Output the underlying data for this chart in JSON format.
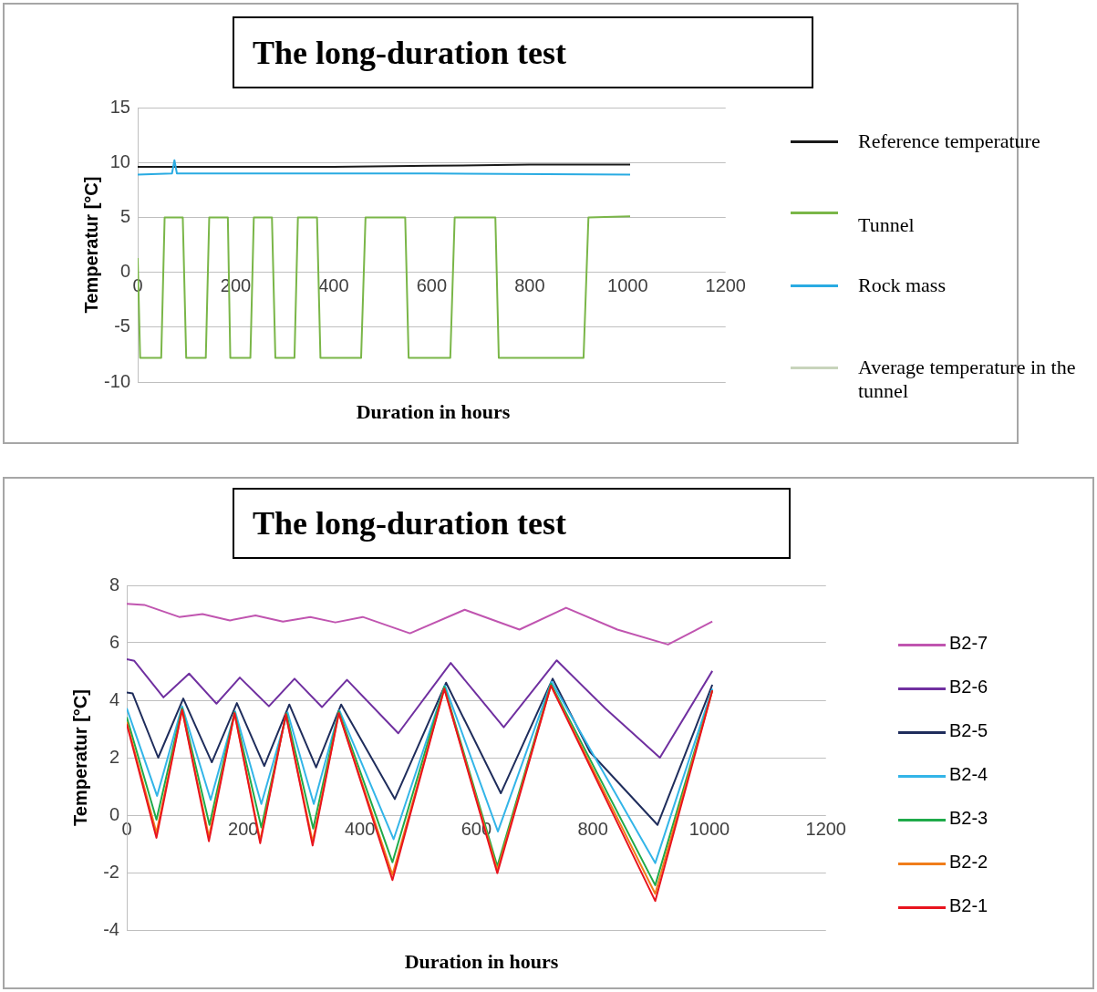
{
  "chart_data": [
    {
      "type": "line",
      "title": "The long-duration test",
      "xlabel": "Duration in hours",
      "ylabel": "Temperatur [°C]",
      "xlim": [
        0,
        1200
      ],
      "xticks": [
        0,
        200,
        400,
        600,
        800,
        1000,
        1200
      ],
      "ylim": [
        -10,
        15
      ],
      "yticks": [
        -10,
        -5,
        0,
        5,
        10,
        15
      ],
      "grid": "y",
      "legend": "right",
      "series": [
        {
          "name": "Reference temperature",
          "color": "#1a1a1a",
          "x": [
            0,
            200,
            400,
            600,
            800,
            1005
          ],
          "values": [
            9.6,
            9.6,
            9.6,
            9.7,
            9.8,
            9.8
          ]
        },
        {
          "name": "Tunnel",
          "color": "#7ab648",
          "x": [
            0,
            5,
            48,
            55,
            92,
            99,
            139,
            146,
            184,
            189,
            230,
            237,
            274,
            281,
            320,
            327,
            366,
            373,
            456,
            465,
            546,
            553,
            638,
            647,
            730,
            737,
            910,
            920,
            1005
          ],
          "values": [
            1.3,
            -7.8,
            -7.8,
            5,
            5,
            -7.8,
            -7.8,
            5,
            5,
            -7.8,
            -7.8,
            5,
            5,
            -7.8,
            -7.8,
            5,
            5,
            -7.8,
            -7.8,
            5,
            5,
            -7.8,
            -7.8,
            5,
            5,
            -7.8,
            -7.8,
            5,
            5.1
          ]
        },
        {
          "name": "Rock mass",
          "color": "#29abe2",
          "x": [
            0,
            70,
            75,
            80,
            300,
            600,
            1005
          ],
          "values": [
            8.9,
            9.0,
            10.2,
            9.0,
            9.0,
            9.0,
            8.9
          ]
        },
        {
          "name": "Average temperature in the tunnel",
          "color": "#c8d4bc"
        }
      ]
    },
    {
      "type": "line",
      "title": "The long-duration test",
      "xlabel": "Duration in hours",
      "ylabel": "Temperatur [°C]",
      "xlim": [
        0,
        1200
      ],
      "xticks": [
        0,
        200,
        400,
        600,
        800,
        1000,
        1200
      ],
      "ylim": [
        -4,
        8
      ],
      "yticks": [
        -4,
        -2,
        0,
        2,
        4,
        6,
        8
      ],
      "grid": "y",
      "legend": "right",
      "series": [
        {
          "name": "B2-7",
          "color": "#c055b0",
          "x": [
            0,
            30,
            90,
            130,
            177,
            221,
            268,
            315,
            358,
            405,
            486,
            580,
            674,
            754,
            842,
            929,
            1005
          ],
          "values": [
            7.36,
            7.32,
            6.9,
            7.0,
            6.78,
            6.95,
            6.74,
            6.9,
            6.71,
            6.9,
            6.33,
            7.15,
            6.46,
            7.22,
            6.46,
            5.94,
            6.74
          ]
        },
        {
          "name": "B2-6",
          "color": "#7030a0",
          "x": [
            0,
            13,
            63,
            107,
            154,
            194,
            244,
            288,
            335,
            378,
            466,
            556,
            647,
            738,
            821,
            915,
            1005
          ],
          "values": [
            5.43,
            5.37,
            4.1,
            4.93,
            3.88,
            4.79,
            3.79,
            4.75,
            3.76,
            4.71,
            2.85,
            5.3,
            3.06,
            5.39,
            3.72,
            2.0,
            5.02
          ]
        },
        {
          "name": "B2-5",
          "color": "#1f2d5c",
          "x": [
            0,
            10,
            54,
            97,
            146,
            189,
            236,
            279,
            325,
            368,
            460,
            548,
            642,
            731,
            795,
            911,
            1005
          ],
          "values": [
            4.27,
            4.24,
            2.0,
            4.06,
            1.84,
            3.9,
            1.71,
            3.85,
            1.66,
            3.85,
            0.56,
            4.61,
            0.76,
            4.75,
            2.2,
            -0.34,
            4.54
          ]
        },
        {
          "name": "B2-4",
          "color": "#33b5e8",
          "x": [
            0,
            52,
            95,
            144,
            186,
            231,
            276,
            321,
            365,
            458,
            546,
            637,
            729,
            907,
            1005
          ],
          "values": [
            3.72,
            0.67,
            3.79,
            0.53,
            3.61,
            0.39,
            3.58,
            0.39,
            3.65,
            -0.84,
            4.51,
            -0.57,
            4.65,
            -1.67,
            4.4
          ]
        },
        {
          "name": "B2-3",
          "color": "#1faa4a",
          "x": [
            0,
            51,
            95,
            142,
            185,
            231,
            274,
            320,
            364,
            456,
            545,
            636,
            728,
            907,
            1005
          ],
          "values": [
            3.41,
            -0.16,
            3.72,
            -0.34,
            3.58,
            -0.43,
            3.54,
            -0.47,
            3.61,
            -1.64,
            4.47,
            -1.78,
            4.57,
            -2.44,
            4.34
          ]
        },
        {
          "name": "B2-2",
          "color": "#f07d1a",
          "x": [
            0,
            51,
            95,
            141,
            185,
            229,
            273,
            319,
            364,
            456,
            545,
            636,
            728,
            907,
            1005
          ],
          "values": [
            3.24,
            -0.61,
            3.67,
            -0.75,
            3.55,
            -0.88,
            3.51,
            -0.93,
            3.55,
            -2.08,
            4.4,
            -1.91,
            4.51,
            -2.74,
            4.34
          ]
        },
        {
          "name": "B2-1",
          "color": "#e8141e",
          "x": [
            0,
            51,
            95,
            141,
            185,
            229,
            273,
            319,
            364,
            456,
            545,
            636,
            728,
            907,
            1005
          ],
          "values": [
            3.17,
            -0.79,
            3.67,
            -0.91,
            3.55,
            -0.98,
            3.51,
            -1.06,
            3.55,
            -2.26,
            4.4,
            -2.02,
            4.51,
            -2.99,
            4.34
          ]
        }
      ]
    }
  ]
}
